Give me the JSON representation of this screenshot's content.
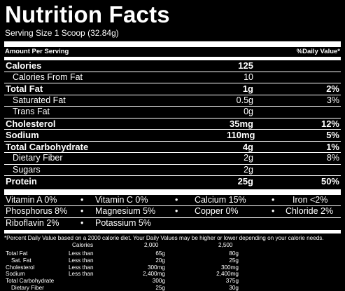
{
  "title": "Nutrition Facts",
  "serving": "Serving Size 1 Scoop (32.84g)",
  "header": {
    "left": "Amount Per Serving",
    "right": "%Daily Value*"
  },
  "rows": [
    {
      "label": "Calories",
      "amount": "125",
      "pct": ""
    },
    {
      "label": "Calories From Fat",
      "amount": "10",
      "pct": ""
    },
    {
      "label": "Total Fat",
      "amount": "1g",
      "pct": "2%"
    },
    {
      "label": "Saturated Fat",
      "amount": "0.5g",
      "pct": "3%"
    },
    {
      "label": "Trans Fat",
      "amount": "0g",
      "pct": ""
    },
    {
      "label": "Cholesterol",
      "amount": "35mg",
      "pct": "12%"
    },
    {
      "label": "Sodium",
      "amount": "110mg",
      "pct": "5%"
    },
    {
      "label": "Total Carbohydrate",
      "amount": "4g",
      "pct": "1%"
    },
    {
      "label": "Dietary Fiber",
      "amount": "2g",
      "pct": "8%"
    },
    {
      "label": "Sugars",
      "amount": "2g",
      "pct": ""
    },
    {
      "label": "Protein",
      "amount": "25g",
      "pct": "50%"
    }
  ],
  "vitamins": [
    [
      "Vitamin A 0%",
      "Vitamin C 0%",
      "Calcium 15%",
      "Iron <2%"
    ],
    [
      "Phosphorus 8%",
      "Magnesium 5%",
      "Copper 0%",
      "Chloride 2%"
    ],
    [
      "Riboflavin 2%",
      "Potassium 5%"
    ]
  ],
  "bullet": "•",
  "footnote": "*Percent Daily Value based on a 2000 calorie diet. Your Daily Values may be higher or lower depending on your calorie needs.",
  "dv_table": [
    [
      "",
      "Calories",
      "2,000",
      "2,500"
    ],
    [
      "Total Fat",
      "Less than",
      "65g",
      "80g"
    ],
    [
      "Sat. Fat",
      "Less than",
      "20g",
      "25g"
    ],
    [
      "Cholesterol",
      "Less than",
      "300mg",
      "300mg"
    ],
    [
      "Sodium",
      "Less than",
      "2,400mg",
      "2,400mg"
    ],
    [
      "Total Carbohydrate",
      "",
      "300g",
      "375g"
    ],
    [
      "Dietary Fiber",
      "",
      "25g",
      "30g"
    ]
  ]
}
